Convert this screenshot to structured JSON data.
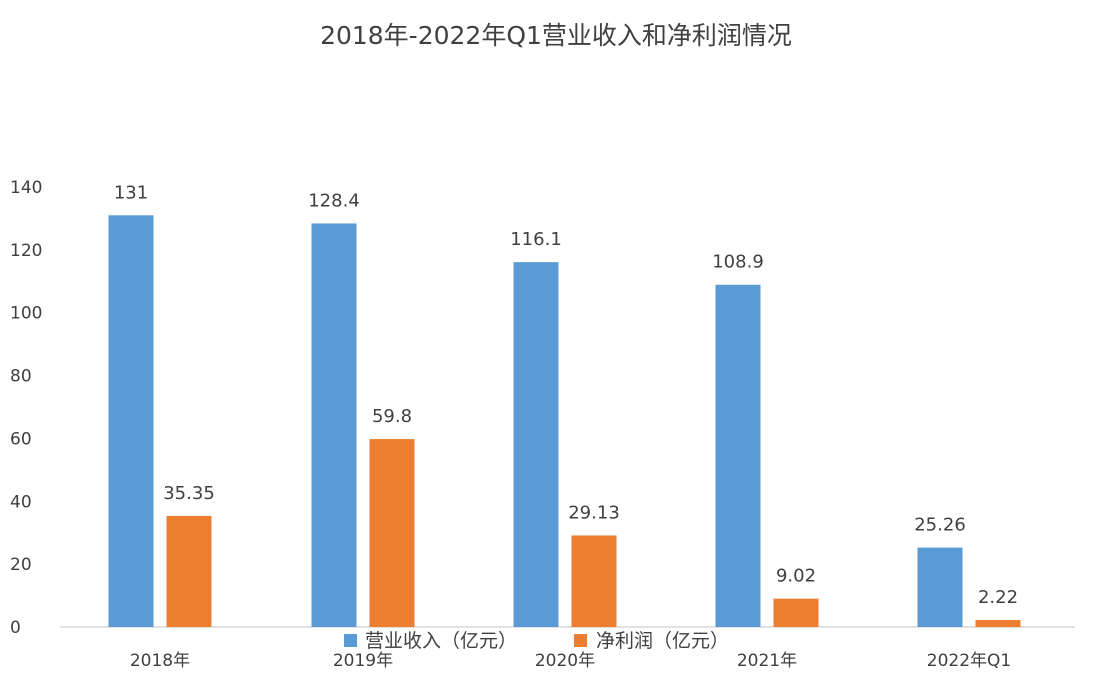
{
  "chart_data": {
    "type": "bar",
    "title": "2018年-2022年Q1营业收入和净利润情况",
    "xlabel": "",
    "ylabel": "",
    "categories": [
      "2018年",
      "2019年",
      "2020年",
      "2021年",
      "2022年Q1"
    ],
    "series": [
      {
        "name": "营业收入（亿元）",
        "color": "#5b9bd5",
        "values": [
          131,
          128.4,
          116.1,
          108.9,
          25.26
        ],
        "labels": [
          "131",
          "128.4",
          "116.1",
          "108.9",
          "25.26"
        ]
      },
      {
        "name": "净利润（亿元）",
        "color": "#ed7d31",
        "values": [
          35.35,
          59.8,
          29.13,
          9.02,
          2.22
        ],
        "labels": [
          "35.35",
          "59.8",
          "29.13",
          "9.02",
          "2.22"
        ]
      }
    ],
    "ylim": [
      0,
      140
    ],
    "yticks": [
      0,
      20,
      40,
      60,
      80,
      100,
      120,
      140
    ],
    "grid": false,
    "legend_position": "bottom"
  }
}
